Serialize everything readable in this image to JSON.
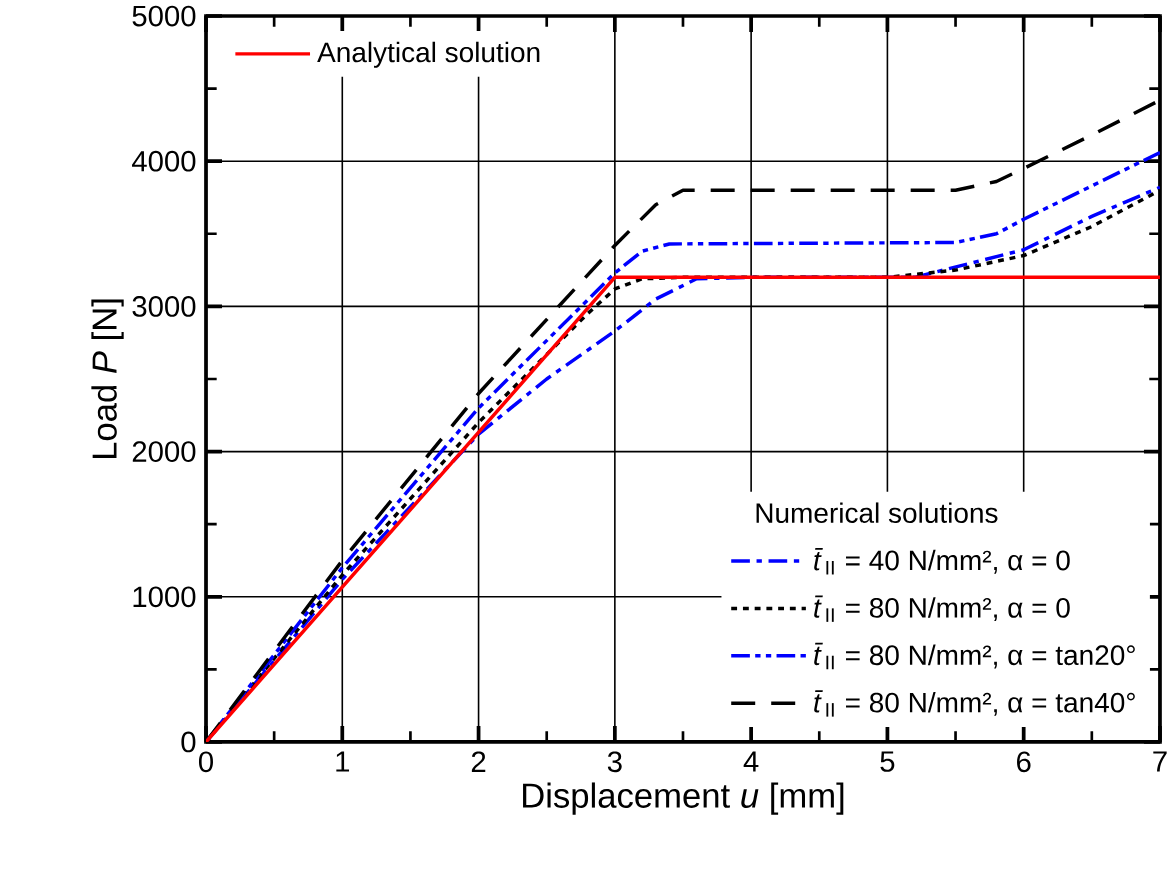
{
  "chart_data": {
    "type": "line",
    "xlabel": "Displacement *u* [mm]",
    "ylabel": "Load *P* [N]",
    "legend_title": "Numerical solutions",
    "xlim": [
      0,
      7
    ],
    "ylim": [
      0,
      5000
    ],
    "xticks": [
      0,
      1,
      2,
      3,
      4,
      5,
      6,
      7
    ],
    "yticks": [
      0,
      1000,
      2000,
      3000,
      4000,
      5000
    ],
    "grid": true,
    "legend": "bottom right",
    "series": [
      {
        "name": "Analytical solution",
        "color": "#ff0000",
        "line_style": "solid",
        "x": [
          0,
          3.0,
          7
        ],
        "values": [
          0,
          3200,
          3200
        ]
      },
      {
        "name": "*t̄*$_{II}$ = 40 N/mm², α = 0",
        "color": "#0000ff",
        "line_style": "dashdot",
        "x": [
          0,
          1,
          2,
          2.5,
          3,
          3.3,
          3.6,
          4,
          5.2,
          6,
          6.5,
          7
        ],
        "values": [
          0,
          1120,
          2120,
          2500,
          2830,
          3050,
          3190,
          3200,
          3200,
          3390,
          3620,
          3820
        ]
      },
      {
        "name": "*t̄*$_{II}$ = 80 N/mm², α = 0",
        "color": "#000000",
        "line_style": "dotted",
        "x": [
          0,
          1,
          2,
          2.8,
          3.0,
          3.2,
          3.5,
          5.0,
          5.5,
          6,
          6.5,
          7
        ],
        "values": [
          0,
          1150,
          2200,
          2950,
          3120,
          3190,
          3200,
          3200,
          3250,
          3350,
          3550,
          3800
        ]
      },
      {
        "name": "*t̄*$_{II}$ = 80 N/mm², α = tan20°",
        "color": "#0000ff",
        "line_style": "dashdotdot",
        "x": [
          0,
          1,
          2,
          3.0,
          3.2,
          3.4,
          5.5,
          5.8,
          6,
          6.5,
          7
        ],
        "values": [
          0,
          1200,
          2300,
          3230,
          3380,
          3430,
          3440,
          3500,
          3600,
          3830,
          4060
        ]
      },
      {
        "name": "*t̄*$_{II}$ = 80 N/mm², α = tan40°",
        "color": "#000000",
        "line_style": "dashed",
        "x": [
          0,
          1,
          2,
          3,
          3.3,
          3.5,
          5.5,
          5.8,
          6,
          6.5,
          7
        ],
        "values": [
          0,
          1250,
          2400,
          3420,
          3700,
          3800,
          3800,
          3860,
          3950,
          4180,
          4420
        ]
      }
    ]
  }
}
